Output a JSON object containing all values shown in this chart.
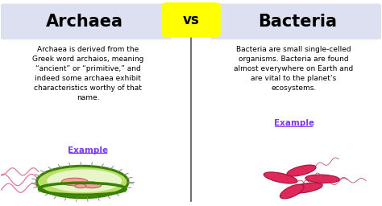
{
  "title_left": "Archaea",
  "title_right": "Bacteria",
  "vs_text": "vs",
  "text_left": "Archaea is derived from the\nGreek word archaios, meaning\n“ancient” or “primitive,” and\nindeed some archaea exhibit\ncharacteristics worthy of that\nname.",
  "text_right": "Bacteria are small single-celled\norganisms. Bacteria are found\nalmost everywhere on Earth and\nare vital to the planet’s\necosystems.",
  "example_text": "Example",
  "bg_color": "#ffffff",
  "left_title_bg": "#dce0f0",
  "right_title_bg": "#dce0f0",
  "vs_bg": "#ffff00",
  "title_color": "#000000",
  "body_text_color": "#000000",
  "example_color": "#7c3aed",
  "divider_color": "#555555",
  "archaea_body_color": "#b8e068",
  "archaea_edge_color": "#3a8000",
  "archaea_inner_color": "#e8f5c8",
  "archaea_flagella_color": "#e07898",
  "archaea_organelle_color": "#f4a0a0",
  "archaea_organelle_edge": "#c05050",
  "bacteria_color": "#e02858",
  "bacteria_edge_color": "#a01040",
  "bacteria_flagella_color": "#c05070",
  "fig_width": 4.74,
  "fig_height": 2.56,
  "dpi": 100
}
